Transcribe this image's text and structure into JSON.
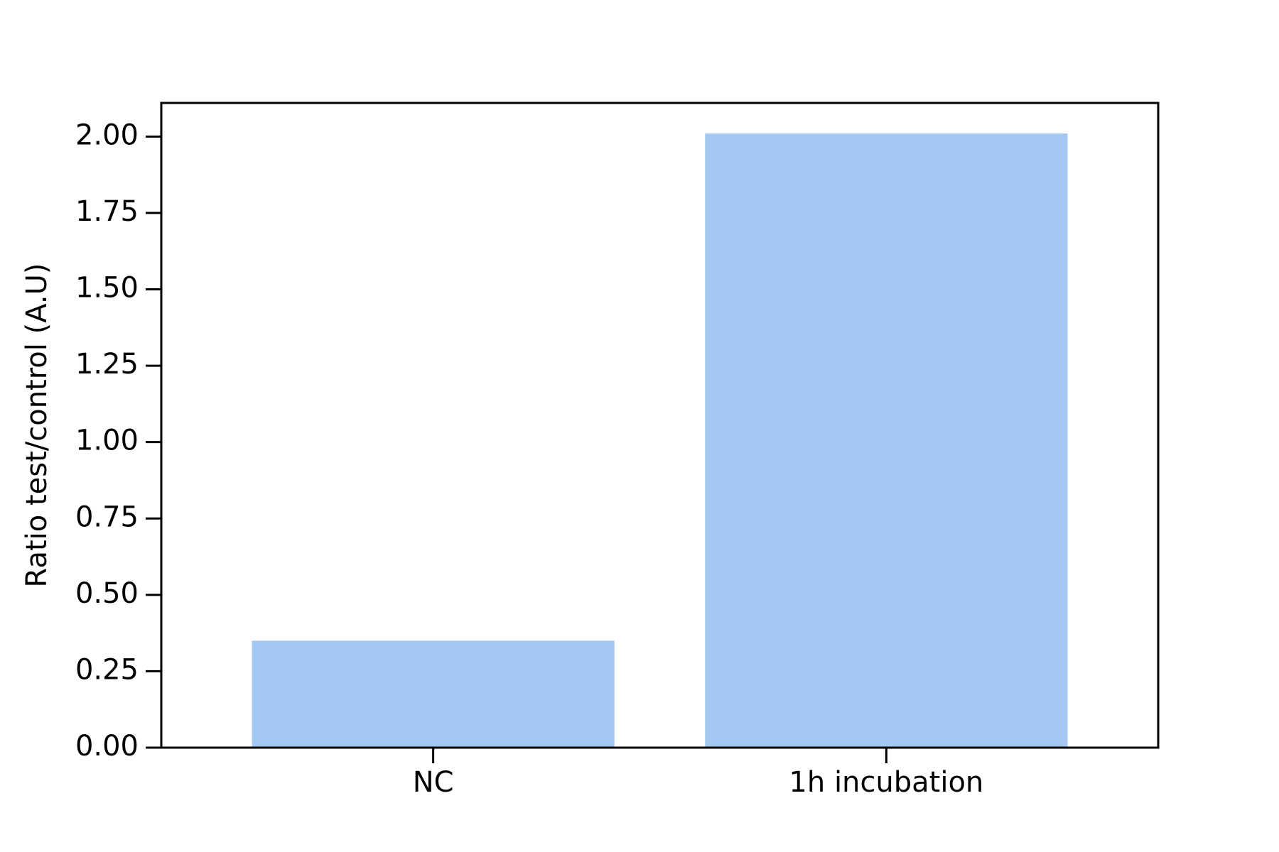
{
  "chart_data": {
    "type": "bar",
    "title": "",
    "xlabel": "",
    "ylabel": "Ratio test/control (A.U)",
    "categories": [
      "NC",
      "1h incubation"
    ],
    "values": [
      0.35,
      2.01
    ],
    "ylim": [
      0,
      2.11
    ],
    "yticks": [
      0.0,
      0.25,
      0.5,
      0.75,
      1.0,
      1.25,
      1.5,
      1.75,
      2.0
    ],
    "ytick_labels": [
      "0.00",
      "0.25",
      "0.50",
      "0.75",
      "1.00",
      "1.25",
      "1.50",
      "1.75",
      "2.00"
    ],
    "bar_color": "#a3c8f2",
    "grid": false,
    "legend": "none"
  }
}
